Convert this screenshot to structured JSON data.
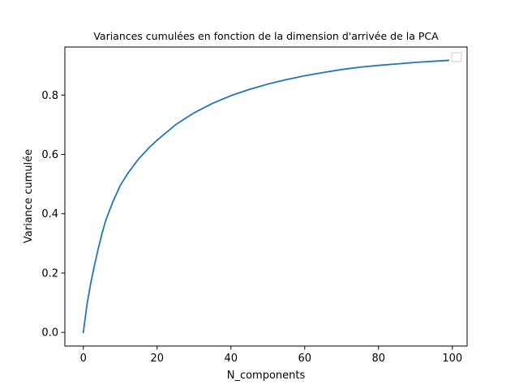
{
  "chart_data": {
    "type": "line",
    "title": "Variances cumulées en fonction de la dimension d'arrivée de la PCA",
    "xlabel": "N_components",
    "ylabel": "Variance cumulée",
    "xlim": [
      -5,
      104
    ],
    "ylim": [
      -0.046,
      0.962
    ],
    "xticks": [
      0,
      20,
      40,
      60,
      80,
      100
    ],
    "yticks": [
      0.0,
      0.2,
      0.4,
      0.6,
      0.8
    ],
    "xtick_labels": [
      "0",
      "20",
      "40",
      "60",
      "80",
      "100"
    ],
    "ytick_labels": [
      "0.0",
      "0.2",
      "0.4",
      "0.6",
      "0.8"
    ],
    "legend": {
      "placement": "top-right",
      "entries": []
    },
    "grid": false,
    "series": [
      {
        "color": "#1f77b4",
        "x": [
          0,
          1,
          2,
          3,
          4,
          5,
          6,
          8,
          10,
          12,
          15,
          18,
          20,
          25,
          30,
          35,
          40,
          45,
          50,
          55,
          60,
          65,
          70,
          75,
          80,
          85,
          90,
          95,
          99
        ],
        "values": [
          0.0,
          0.095,
          0.165,
          0.225,
          0.28,
          0.33,
          0.375,
          0.44,
          0.495,
          0.535,
          0.585,
          0.625,
          0.648,
          0.7,
          0.74,
          0.772,
          0.798,
          0.819,
          0.837,
          0.852,
          0.865,
          0.876,
          0.886,
          0.894,
          0.9,
          0.905,
          0.91,
          0.914,
          0.917
        ]
      }
    ]
  }
}
